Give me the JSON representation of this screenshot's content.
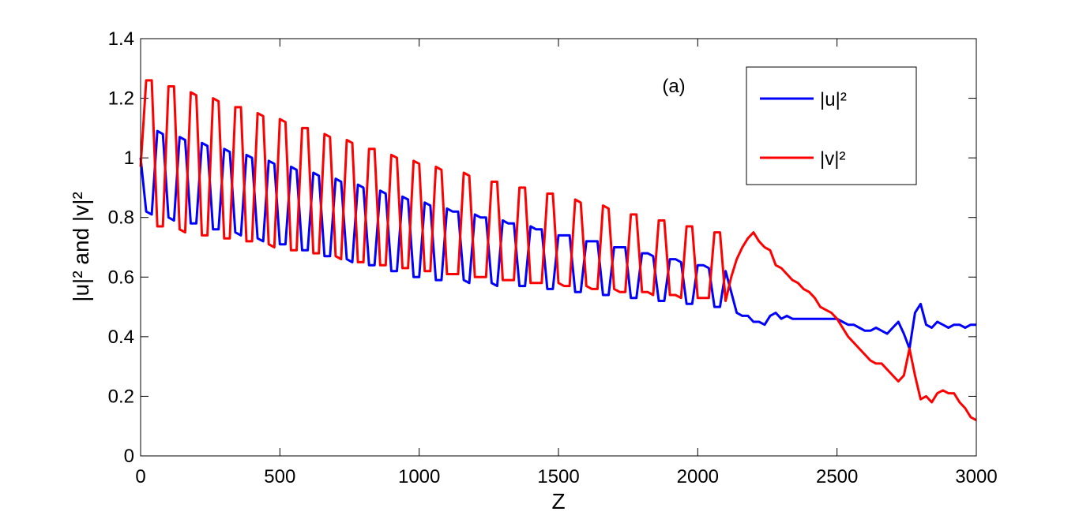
{
  "chart_data": {
    "type": "line",
    "xlabel": "Z",
    "ylabel": "|u|² and |v|²",
    "annotation": "(a)",
    "xlim": [
      0,
      3000
    ],
    "xticks": [
      0,
      500,
      1000,
      1500,
      2000,
      2500,
      3000
    ],
    "ylim": [
      0,
      1.4
    ],
    "yticks": [
      0,
      0.2,
      0.4,
      0.6,
      0.8,
      1,
      1.2,
      1.4
    ],
    "grid": false,
    "legend": "upper right",
    "x": [
      0,
      20,
      40,
      60,
      80,
      100,
      120,
      140,
      160,
      180,
      200,
      220,
      240,
      260,
      280,
      300,
      320,
      340,
      360,
      380,
      400,
      420,
      440,
      460,
      480,
      500,
      520,
      540,
      560,
      580,
      600,
      620,
      640,
      660,
      680,
      700,
      720,
      740,
      760,
      780,
      800,
      820,
      840,
      860,
      880,
      900,
      920,
      940,
      960,
      980,
      1000,
      1020,
      1040,
      1060,
      1080,
      1100,
      1120,
      1140,
      1160,
      1180,
      1200,
      1220,
      1240,
      1260,
      1280,
      1300,
      1320,
      1340,
      1360,
      1380,
      1400,
      1420,
      1440,
      1460,
      1480,
      1500,
      1520,
      1540,
      1560,
      1580,
      1600,
      1620,
      1640,
      1660,
      1680,
      1700,
      1720,
      1740,
      1760,
      1780,
      1800,
      1820,
      1840,
      1860,
      1880,
      1900,
      1920,
      1940,
      1960,
      1980,
      2000,
      2020,
      2040,
      2060,
      2080,
      2100,
      2120,
      2140,
      2160,
      2180,
      2200,
      2220,
      2240,
      2260,
      2280,
      2300,
      2320,
      2340,
      2360,
      2380,
      2400,
      2420,
      2440,
      2460,
      2480,
      2500,
      2520,
      2540,
      2560,
      2580,
      2600,
      2620,
      2640,
      2660,
      2680,
      2700,
      2720,
      2740,
      2760,
      2780,
      2800,
      2820,
      2840,
      2860,
      2880,
      2900,
      2920,
      2940,
      2960,
      2980,
      3000
    ],
    "series": [
      {
        "name": "|u|²",
        "color": "#0000ff",
        "values": [
          1.0,
          0.82,
          0.81,
          1.09,
          1.08,
          0.8,
          0.79,
          1.07,
          1.06,
          0.78,
          0.78,
          1.05,
          1.04,
          0.76,
          0.76,
          1.03,
          1.02,
          0.75,
          0.74,
          1.01,
          1.0,
          0.73,
          0.72,
          0.99,
          0.98,
          0.71,
          0.71,
          0.97,
          0.96,
          0.69,
          0.69,
          0.95,
          0.94,
          0.67,
          0.67,
          0.93,
          0.92,
          0.66,
          0.65,
          0.91,
          0.9,
          0.64,
          0.64,
          0.89,
          0.88,
          0.62,
          0.62,
          0.87,
          0.86,
          0.6,
          0.6,
          0.85,
          0.84,
          0.59,
          0.59,
          0.83,
          0.82,
          0.82,
          0.59,
          0.58,
          0.81,
          0.8,
          0.8,
          0.58,
          0.57,
          0.79,
          0.78,
          0.78,
          0.57,
          0.57,
          0.77,
          0.76,
          0.76,
          0.56,
          0.56,
          0.74,
          0.74,
          0.74,
          0.55,
          0.55,
          0.72,
          0.72,
          0.72,
          0.54,
          0.54,
          0.7,
          0.7,
          0.7,
          0.53,
          0.53,
          0.68,
          0.68,
          0.67,
          0.52,
          0.52,
          0.66,
          0.66,
          0.65,
          0.51,
          0.51,
          0.64,
          0.64,
          0.63,
          0.5,
          0.5,
          0.62,
          0.55,
          0.48,
          0.47,
          0.47,
          0.45,
          0.45,
          0.44,
          0.47,
          0.48,
          0.46,
          0.47,
          0.46,
          0.46,
          0.46,
          0.46,
          0.46,
          0.46,
          0.46,
          0.46,
          0.46,
          0.45,
          0.44,
          0.44,
          0.43,
          0.42,
          0.42,
          0.43,
          0.42,
          0.41,
          0.43,
          0.45,
          0.41,
          0.36,
          0.48,
          0.51,
          0.44,
          0.43,
          0.45,
          0.44,
          0.43,
          0.44,
          0.44,
          0.43,
          0.44,
          0.44
        ]
      },
      {
        "name": "|v|²",
        "color": "#ff0000",
        "values": [
          0.97,
          1.26,
          1.26,
          0.77,
          0.77,
          1.24,
          1.24,
          0.76,
          0.75,
          1.22,
          1.21,
          0.74,
          0.74,
          1.2,
          1.19,
          0.73,
          0.73,
          1.17,
          1.17,
          0.72,
          0.72,
          1.15,
          1.14,
          0.71,
          0.7,
          1.13,
          1.12,
          0.69,
          0.69,
          1.1,
          1.1,
          0.68,
          0.68,
          1.08,
          1.07,
          0.67,
          0.66,
          1.06,
          1.05,
          0.65,
          0.65,
          1.03,
          1.03,
          0.64,
          0.64,
          1.01,
          1.0,
          0.63,
          0.63,
          0.99,
          0.98,
          0.62,
          0.62,
          0.97,
          0.96,
          0.61,
          0.61,
          0.61,
          0.95,
          0.94,
          0.6,
          0.6,
          0.6,
          0.92,
          0.92,
          0.59,
          0.59,
          0.59,
          0.9,
          0.9,
          0.58,
          0.58,
          0.58,
          0.88,
          0.88,
          0.58,
          0.57,
          0.57,
          0.86,
          0.85,
          0.57,
          0.56,
          0.56,
          0.84,
          0.83,
          0.56,
          0.55,
          0.55,
          0.81,
          0.81,
          0.55,
          0.55,
          0.54,
          0.79,
          0.79,
          0.54,
          0.54,
          0.53,
          0.77,
          0.77,
          0.53,
          0.53,
          0.53,
          0.75,
          0.75,
          0.52,
          0.6,
          0.66,
          0.7,
          0.73,
          0.75,
          0.72,
          0.7,
          0.69,
          0.64,
          0.63,
          0.61,
          0.59,
          0.58,
          0.56,
          0.55,
          0.53,
          0.5,
          0.49,
          0.48,
          0.46,
          0.43,
          0.4,
          0.38,
          0.36,
          0.34,
          0.32,
          0.31,
          0.31,
          0.29,
          0.27,
          0.25,
          0.27,
          0.36,
          0.27,
          0.19,
          0.2,
          0.18,
          0.21,
          0.22,
          0.21,
          0.21,
          0.18,
          0.16,
          0.13,
          0.12
        ]
      }
    ]
  }
}
